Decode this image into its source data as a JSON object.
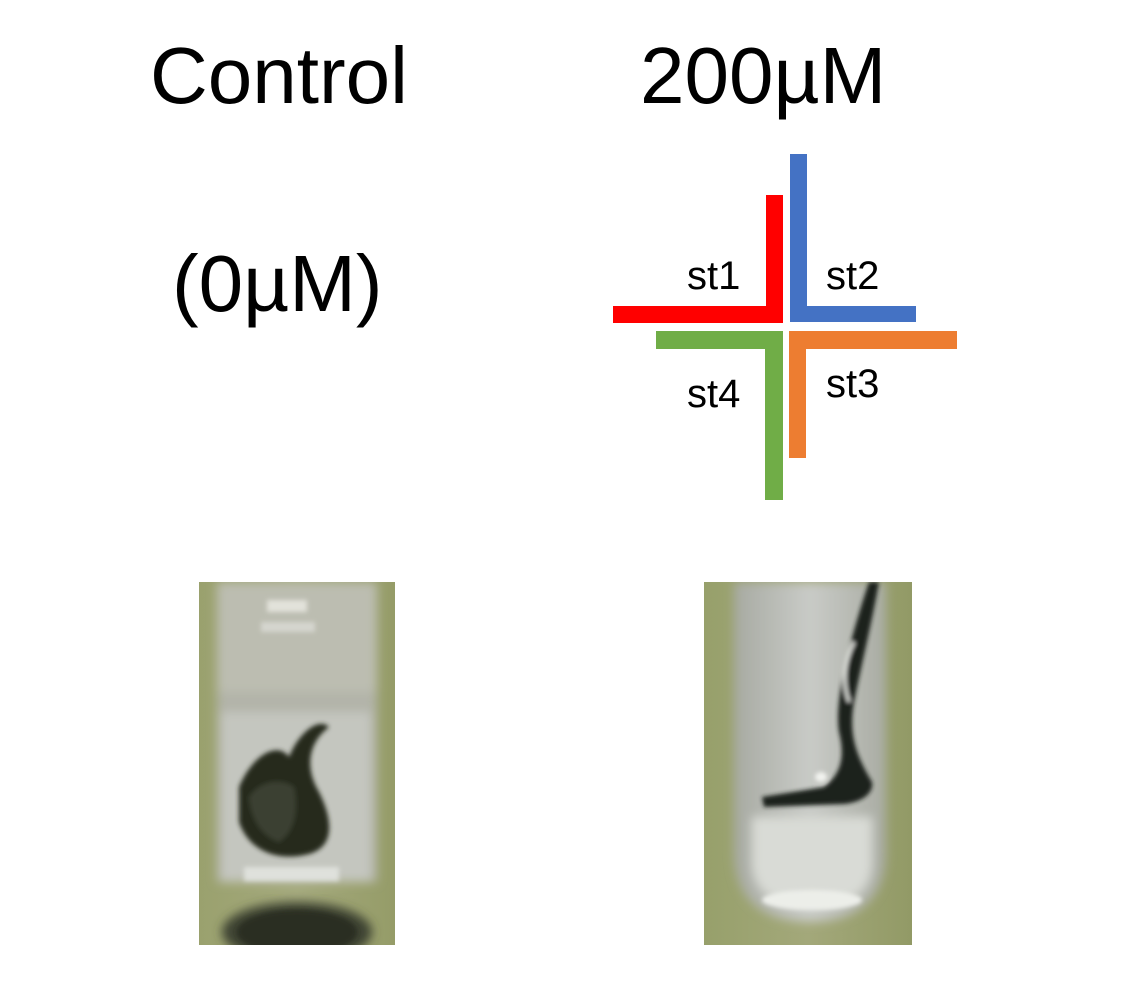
{
  "control": {
    "title": "Control",
    "concentration": "(0µM)"
  },
  "treatment": {
    "title": "200µM"
  },
  "strain_key": {
    "st1": {
      "label": "st1",
      "color": "#ff0000"
    },
    "st2": {
      "label": "st2",
      "color": "#4472c4"
    },
    "st3": {
      "label": "st3",
      "color": "#ed7d31"
    },
    "st4": {
      "label": "st4",
      "color": "#70ad47"
    }
  },
  "photos": {
    "control": {
      "subject": "tube-photo-control"
    },
    "treated": {
      "subject": "tube-photo-200uM"
    }
  }
}
